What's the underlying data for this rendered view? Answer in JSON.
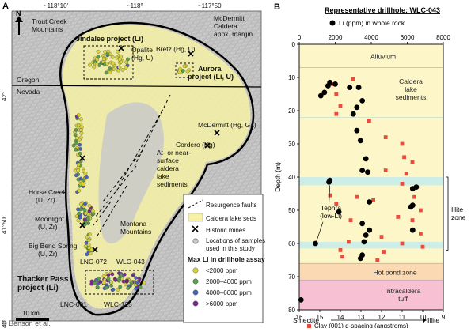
{
  "panel_a": {
    "label": "A",
    "lon_ticks": [
      "~118°10'",
      "~118°",
      "~117°50'"
    ],
    "lat_ticks": [
      "42°",
      "41°50'",
      "41°40'"
    ],
    "north": "N",
    "place_labels": {
      "trout_creek": [
        "Trout Creek",
        "Mountains"
      ],
      "mcdermitt_caldera": [
        "McDermitt",
        "Caldera",
        "appx. margin"
      ],
      "jindalee": "Jindalee project (Li)",
      "opalite": [
        "Opalite",
        "(Hg, U)"
      ],
      "bretz": "Bretz (Hg, U)",
      "aurora": [
        "Aurora",
        "project (Li, U)"
      ],
      "oregon": "Oregon",
      "nevada": "Nevada",
      "mcdermitt_mine": "McDermitt (Hg, Ga)",
      "cordero": "Cordero (Hg)",
      "lake_sed": [
        "At- or near-",
        "surface",
        "caldera",
        "lake",
        "sediments"
      ],
      "horse_creek": [
        "Horse Creek",
        "(U, Zr)"
      ],
      "moonlight": [
        "Moonlight",
        "(U, Zr)"
      ],
      "montana_mtns": [
        "Montana",
        "Mountains"
      ],
      "big_bend": [
        "Big Bend Spring",
        "(U, Zr)"
      ],
      "lnc072": "LNC-072",
      "wlc043": "WLC-043",
      "thacker": [
        "Thacker Pass",
        "project (Li)"
      ],
      "lnc001": "LNC-001",
      "wlc125": "WLC-125",
      "scale": "10 km",
      "credit": "© Benson et al."
    },
    "legend": {
      "resurgence": "Resurgence faults",
      "caldera_seds": "Caldera lake seds",
      "historic": "Historic mines",
      "samples": [
        "Locations of samples",
        "used in this study"
      ],
      "max_li_title": "Max Li in drillhole assay",
      "classes": [
        {
          "label": "<2000 ppm",
          "color": "#d7d33a"
        },
        {
          "label": "2000–4000 ppm",
          "color": "#5a9e4b"
        },
        {
          "label": "4000–6000 ppm",
          "color": "#4a63b8"
        },
        {
          "label": ">6000 ppm",
          "color": "#7a2a8c"
        }
      ]
    }
  },
  "chart_data": {
    "type": "scatter",
    "panel_label": "B",
    "title": "Representative drillhole: WLC-043",
    "top_axis": {
      "label": "Li (ppm) in whole rock",
      "ticks": [
        0,
        2000,
        4000,
        6000,
        8000
      ],
      "lim": [
        0,
        8000
      ]
    },
    "bottom_axis": {
      "label": "Clay (001) d-spacing (angstroms)",
      "ticks": [
        16,
        15,
        14,
        13,
        12,
        11,
        10,
        9
      ],
      "lim": [
        16,
        9
      ],
      "end_left": "Smectite",
      "end_right": "Illite"
    },
    "y_axis": {
      "label": "Depth (m)",
      "ticks": [
        0,
        10,
        20,
        30,
        40,
        50,
        60,
        70,
        80
      ],
      "lim": [
        0,
        80
      ],
      "inverted": true
    },
    "units": [
      {
        "label": [
          "Alluvium"
        ],
        "top": 0,
        "bottom": 7,
        "color": "#fdf6c8"
      },
      {
        "label": [
          "Caldera",
          "lake",
          "sediments"
        ],
        "top": 7,
        "bottom": 66,
        "color": "#fdf6c8"
      },
      {
        "label": [
          "Hot pond zone"
        ],
        "top": 66,
        "bottom": 71,
        "color": "#fbd9b3"
      },
      {
        "label": [
          "Intracaldera",
          "tuff"
        ],
        "top": 71,
        "bottom": 80,
        "color": "#f7c1d3"
      }
    ],
    "bands": [
      {
        "top": 40,
        "bottom": 42.5,
        "color": "#cdeee6"
      },
      {
        "top": 59.5,
        "bottom": 61.5,
        "color": "#cdeee6"
      }
    ],
    "annotations": {
      "tephra": [
        "Tephra",
        "(low-Li)"
      ],
      "illite_zone": [
        "Illite",
        "zone"
      ],
      "illite_range": [
        40,
        62
      ]
    },
    "series": [
      {
        "name": "Li (ppm) in whole rock",
        "axis": "top",
        "color": "#000000",
        "points": [
          [
            1700,
            11.5
          ],
          [
            1600,
            12.5
          ],
          [
            1400,
            14.5
          ],
          [
            1200,
            15.5
          ],
          [
            2000,
            12
          ],
          [
            2800,
            13
          ],
          [
            3300,
            13
          ],
          [
            3500,
            17
          ],
          [
            3200,
            19
          ],
          [
            3000,
            21
          ],
          [
            3200,
            26
          ],
          [
            3400,
            29
          ],
          [
            3700,
            34.5
          ],
          [
            3500,
            38
          ],
          [
            3800,
            38.5
          ],
          [
            1700,
            41
          ],
          [
            1650,
            41.5
          ],
          [
            2200,
            50.5
          ],
          [
            3900,
            47.5
          ],
          [
            3500,
            54
          ],
          [
            3900,
            56
          ],
          [
            3700,
            57.5
          ],
          [
            3600,
            59.5
          ],
          [
            3500,
            63.5
          ],
          [
            3400,
            64.5
          ],
          [
            6300,
            43.5
          ],
          [
            6500,
            43
          ],
          [
            6300,
            48.5
          ],
          [
            6200,
            49
          ],
          [
            6300,
            56
          ],
          [
            900,
            60
          ],
          [
            100,
            77
          ]
        ]
      },
      {
        "name": "Clay (001) d-spacing (angstroms)",
        "axis": "bottom",
        "color": "#e74c3c",
        "points": [
          [
            13.4,
            10.5
          ],
          [
            14.4,
            12
          ],
          [
            14.2,
            15
          ],
          [
            14.0,
            18.5
          ],
          [
            14.2,
            21
          ],
          [
            12.6,
            23
          ],
          [
            11.8,
            28
          ],
          [
            11.0,
            30
          ],
          [
            10.9,
            34
          ],
          [
            10.5,
            35.5
          ],
          [
            11.8,
            38
          ],
          [
            10.8,
            39
          ],
          [
            13.2,
            46
          ],
          [
            14.5,
            45.5
          ],
          [
            14.2,
            48
          ],
          [
            11.0,
            42
          ],
          [
            10.3,
            43
          ],
          [
            10.4,
            46
          ],
          [
            10.1,
            50
          ],
          [
            10.5,
            53
          ],
          [
            12.4,
            47
          ],
          [
            11.2,
            52
          ],
          [
            13.5,
            53
          ],
          [
            12.0,
            58
          ],
          [
            13.6,
            59.5
          ],
          [
            11.0,
            60
          ],
          [
            10.1,
            57
          ],
          [
            14.0,
            62
          ],
          [
            13.9,
            64
          ],
          [
            10.0,
            61
          ],
          [
            11.9,
            62.5
          ],
          [
            12.2,
            65
          ]
        ]
      }
    ]
  }
}
